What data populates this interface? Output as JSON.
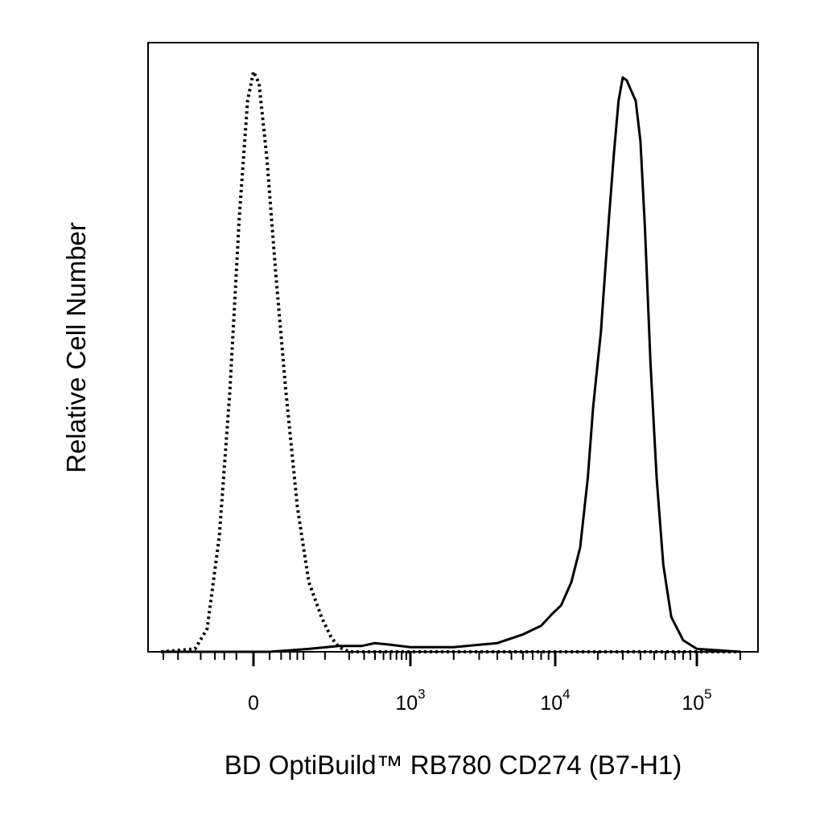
{
  "chart_data": {
    "type": "line",
    "title": "",
    "xlabel": "BD OptiBuild™ RB780 CD274 (B7-H1)",
    "ylabel": "Relative Cell Number",
    "x_scale": "biexponential",
    "xlim": [
      -160,
      150000
    ],
    "ylim": [
      0,
      1.05
    ],
    "grid": false,
    "x_ticks": [
      {
        "value": 0,
        "base": "0",
        "exp": ""
      },
      {
        "value": 1000,
        "base": "10",
        "exp": "3"
      },
      {
        "value": 10000,
        "base": "10",
        "exp": "4"
      },
      {
        "value": 100000,
        "base": "10",
        "exp": "5"
      }
    ],
    "series": [
      {
        "style": "dotted",
        "color": "#000000",
        "points": [
          [
            -160,
            0
          ],
          [
            -60,
            0.005
          ],
          [
            -40,
            0.04
          ],
          [
            -25,
            0.2
          ],
          [
            -15,
            0.45
          ],
          [
            -8,
            0.75
          ],
          [
            -3,
            0.95
          ],
          [
            0,
            1.0
          ],
          [
            3,
            0.98
          ],
          [
            8,
            0.85
          ],
          [
            15,
            0.65
          ],
          [
            25,
            0.45
          ],
          [
            40,
            0.25
          ],
          [
            60,
            0.12
          ],
          [
            90,
            0.06
          ],
          [
            120,
            0.025
          ],
          [
            150,
            0.008
          ],
          [
            200,
            0.0
          ],
          [
            150000,
            0.0
          ]
        ]
      },
      {
        "style": "solid",
        "color": "#000000",
        "points": [
          [
            -160,
            0.0
          ],
          [
            10,
            0.0
          ],
          [
            60,
            0.005
          ],
          [
            150,
            0.01
          ],
          [
            280,
            0.01
          ],
          [
            400,
            0.015
          ],
          [
            600,
            0.012
          ],
          [
            1000,
            0.008
          ],
          [
            2000,
            0.008
          ],
          [
            3000,
            0.012
          ],
          [
            4000,
            0.015
          ],
          [
            6000,
            0.03
          ],
          [
            8000,
            0.045
          ],
          [
            9500,
            0.065
          ],
          [
            11000,
            0.08
          ],
          [
            13000,
            0.12
          ],
          [
            15000,
            0.18
          ],
          [
            17000,
            0.3
          ],
          [
            18500,
            0.42
          ],
          [
            20000,
            0.5
          ],
          [
            21000,
            0.55
          ],
          [
            22000,
            0.62
          ],
          [
            24000,
            0.75
          ],
          [
            26000,
            0.86
          ],
          [
            28000,
            0.95
          ],
          [
            30000,
            0.99
          ],
          [
            32000,
            0.985
          ],
          [
            34000,
            0.97
          ],
          [
            37000,
            0.95
          ],
          [
            40000,
            0.88
          ],
          [
            43000,
            0.73
          ],
          [
            47000,
            0.5
          ],
          [
            52000,
            0.3
          ],
          [
            58000,
            0.15
          ],
          [
            66000,
            0.06
          ],
          [
            80000,
            0.02
          ],
          [
            100000,
            0.005
          ],
          [
            150000,
            0.0
          ]
        ]
      }
    ]
  }
}
